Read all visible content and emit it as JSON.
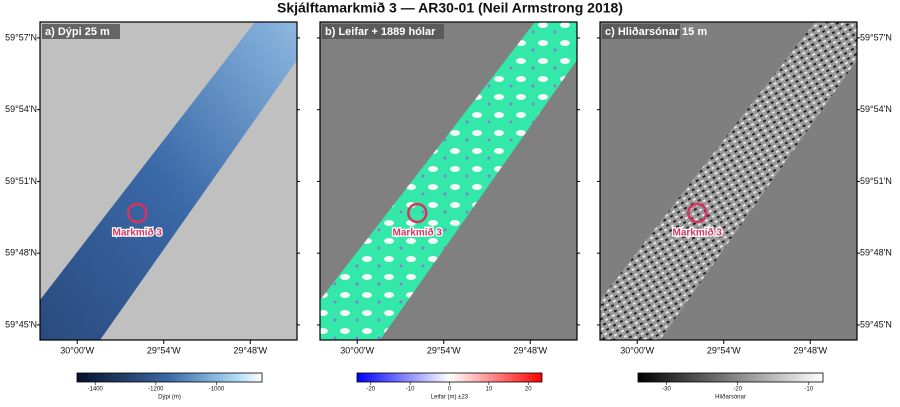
{
  "map": {
    "title": "Skjálftamarkmið 3 — AR30-01 (Neil Armstrong 2018)",
    "xlim": [
      -30.043,
      -29.746
    ],
    "ylim": [
      59.7395,
      59.9611
    ],
    "xticks": [
      {
        "value": -30,
        "label": "30°00'W"
      },
      {
        "value": -29.9,
        "label": "29°54'W"
      },
      {
        "value": -29.8,
        "label": "29°48'W"
      }
    ],
    "yticks": [
      {
        "value": 59.95,
        "label": "59°57'N"
      },
      {
        "value": 59.9,
        "label": "59°54'N"
      },
      {
        "value": 59.85,
        "label": "59°51'N"
      },
      {
        "value": 59.8,
        "label": "59°48'N"
      },
      {
        "value": 59.75,
        "label": "59°45'N"
      }
    ],
    "target": {
      "label": "Markmið 3",
      "lon": -29.9306,
      "lat": 59.828
    },
    "panels": [
      {
        "label": "a) Dýpi 25 m",
        "colorbar": {
          "label": "Dýpi (m)",
          "clim": [
            -1460,
            -850
          ],
          "ticks": [
            -1400,
            -1200,
            -1000
          ]
        }
      },
      {
        "label": "b) Leifar + 1889 hólar",
        "colorbar": {
          "label": "Leifar (m) ±23",
          "clim": [
            -23.5,
            23.5
          ],
          "ticks": [
            -20,
            -10,
            0,
            10,
            20
          ]
        }
      },
      {
        "label": "c) Hliðarsónar 15 m",
        "colorbar": {
          "label": "Hliðarsónar",
          "clim": [
            -34,
            -8
          ],
          "ticks": [
            -30,
            -20,
            -10
          ]
        }
      }
    ]
  }
}
